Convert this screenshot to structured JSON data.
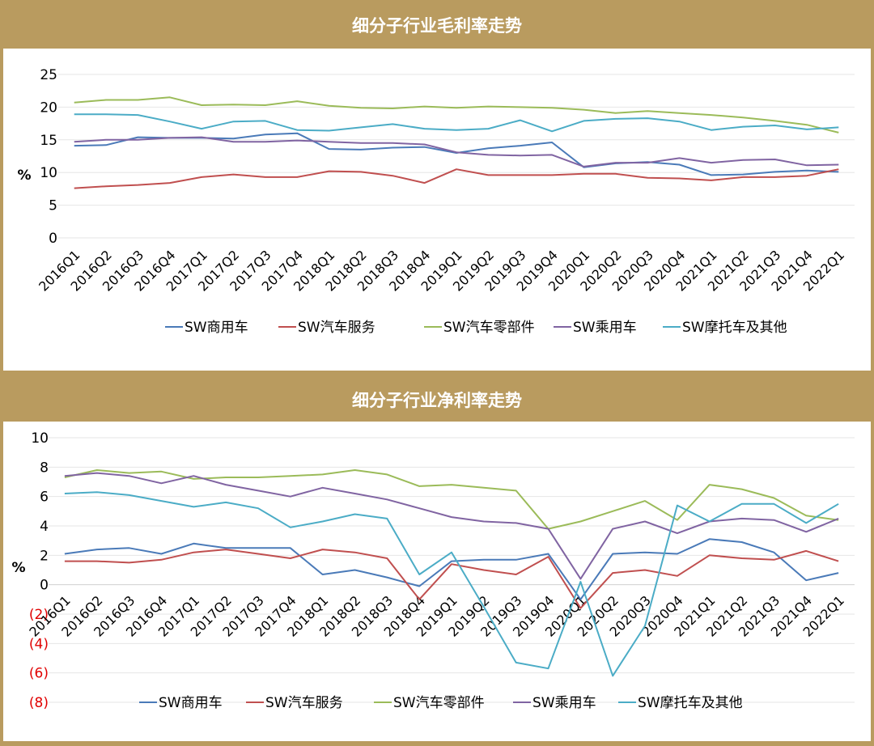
{
  "charts": {
    "gross": {
      "title": "细分子行业毛利率走势"
    },
    "net": {
      "title": "细分子行业净利率走势"
    }
  },
  "colors": {
    "frame": "#b99b5f",
    "negative_tick": "#e00000"
  },
  "chart_data": [
    {
      "type": "line",
      "title": "细分子行业毛利率走势",
      "ylabel": "%",
      "ylim": [
        0,
        25
      ],
      "yticks": [
        0,
        5,
        10,
        15,
        20,
        25
      ],
      "ytick_labels": [
        "0",
        "5",
        "10",
        "15",
        "20",
        "25"
      ],
      "grid": true,
      "legend": "bottom",
      "categories": [
        "2016Q1",
        "2016Q2",
        "2016Q3",
        "2016Q4",
        "2017Q1",
        "2017Q2",
        "2017Q3",
        "2017Q4",
        "2018Q1",
        "2018Q2",
        "2018Q3",
        "2018Q4",
        "2019Q1",
        "2019Q2",
        "2019Q3",
        "2019Q4",
        "2020Q1",
        "2020Q2",
        "2020Q3",
        "2020Q4",
        "2021Q1",
        "2021Q2",
        "2021Q3",
        "2021Q4",
        "2022Q1"
      ],
      "series": [
        {
          "name": "SW商用车",
          "color": "#4a7ab8",
          "values": [
            14.1,
            14.2,
            15.4,
            15.3,
            15.3,
            15.2,
            15.8,
            16.0,
            13.6,
            13.5,
            13.8,
            13.9,
            13.0,
            13.7,
            14.1,
            14.6,
            10.8,
            11.4,
            11.6,
            11.2,
            9.6,
            9.7,
            10.1,
            10.3,
            10.1
          ]
        },
        {
          "name": "SW汽车服务",
          "color": "#c04f4f",
          "values": [
            7.6,
            7.9,
            8.1,
            8.4,
            9.3,
            9.7,
            9.3,
            9.3,
            10.2,
            10.1,
            9.5,
            8.4,
            10.5,
            9.6,
            9.6,
            9.6,
            9.8,
            9.8,
            9.2,
            9.1,
            8.8,
            9.3,
            9.3,
            9.5,
            10.5
          ]
        },
        {
          "name": "SW汽车零部件",
          "color": "#9bbb59",
          "values": [
            20.7,
            21.1,
            21.1,
            21.5,
            20.3,
            20.4,
            20.3,
            20.9,
            20.2,
            19.9,
            19.8,
            20.1,
            19.9,
            20.1,
            20.0,
            19.9,
            19.6,
            19.1,
            19.4,
            19.1,
            18.8,
            18.4,
            17.9,
            17.3,
            16.1
          ]
        },
        {
          "name": "SW乘用车",
          "color": "#8064a2",
          "values": [
            14.7,
            15.0,
            15.0,
            15.3,
            15.4,
            14.7,
            14.7,
            14.9,
            14.7,
            14.5,
            14.5,
            14.3,
            13.1,
            12.7,
            12.6,
            12.7,
            10.9,
            11.5,
            11.5,
            12.2,
            11.5,
            11.9,
            12.0,
            11.1,
            11.2
          ]
        },
        {
          "name": "SW摩托车及其他",
          "color": "#4bacc6",
          "values": [
            18.9,
            18.9,
            18.8,
            17.8,
            16.7,
            17.8,
            17.9,
            16.5,
            16.4,
            16.9,
            17.4,
            16.7,
            16.5,
            16.7,
            18.0,
            16.3,
            17.9,
            18.2,
            18.3,
            17.8,
            16.5,
            17.0,
            17.2,
            16.6,
            16.9
          ]
        }
      ]
    },
    {
      "type": "line",
      "title": "细分子行业净利率走势",
      "ylabel": "%",
      "ylim": [
        -8,
        10
      ],
      "yticks": [
        -8,
        -6,
        -4,
        -2,
        0,
        2,
        4,
        6,
        8,
        10
      ],
      "ytick_labels": [
        "(8)",
        "(6)",
        "(4)",
        "(2)",
        "0",
        "2",
        "4",
        "6",
        "8",
        "10"
      ],
      "grid": true,
      "legend": "bottom",
      "categories": [
        "2016Q1",
        "2016Q2",
        "2016Q3",
        "2016Q4",
        "2017Q1",
        "2017Q2",
        "2017Q3",
        "2017Q4",
        "2018Q1",
        "2018Q2",
        "2018Q3",
        "2018Q4",
        "2019Q1",
        "2019Q2",
        "2019Q3",
        "2019Q4",
        "2020Q1",
        "2020Q2",
        "2020Q3",
        "2020Q4",
        "2021Q1",
        "2021Q2",
        "2021Q3",
        "2021Q4",
        "2022Q1"
      ],
      "series": [
        {
          "name": "SW商用车",
          "color": "#4a7ab8",
          "values": [
            2.1,
            2.4,
            2.5,
            2.1,
            2.8,
            2.5,
            2.5,
            2.5,
            0.7,
            1.0,
            0.5,
            -0.1,
            1.6,
            1.7,
            1.7,
            2.1,
            -1.0,
            2.1,
            2.2,
            2.1,
            3.1,
            2.9,
            2.2,
            0.3,
            0.8
          ]
        },
        {
          "name": "SW汽车服务",
          "color": "#c04f4f",
          "values": [
            1.6,
            1.6,
            1.5,
            1.7,
            2.2,
            2.4,
            2.1,
            1.8,
            2.4,
            2.2,
            1.8,
            -1.0,
            1.4,
            1.0,
            0.7,
            1.9,
            -1.6,
            0.8,
            1.0,
            0.6,
            2.0,
            1.8,
            1.7,
            2.3,
            1.6
          ]
        },
        {
          "name": "SW汽车零部件",
          "color": "#9bbb59",
          "values": [
            7.3,
            7.8,
            7.6,
            7.7,
            7.2,
            7.3,
            7.3,
            7.4,
            7.5,
            7.8,
            7.5,
            6.7,
            6.8,
            6.6,
            6.4,
            3.8,
            4.3,
            5.0,
            5.7,
            4.4,
            6.8,
            6.5,
            5.9,
            4.7,
            4.4
          ]
        },
        {
          "name": "SW乘用车",
          "color": "#8064a2",
          "values": [
            7.4,
            7.6,
            7.4,
            6.9,
            7.4,
            6.8,
            6.4,
            6.0,
            6.6,
            6.2,
            5.8,
            5.2,
            4.6,
            4.3,
            4.2,
            3.8,
            0.4,
            3.8,
            4.3,
            3.5,
            4.3,
            4.5,
            4.4,
            3.6,
            4.5
          ]
        },
        {
          "name": "SW摩托车及其他",
          "color": "#4bacc6",
          "values": [
            6.2,
            6.3,
            6.1,
            5.7,
            5.3,
            5.6,
            5.2,
            3.9,
            4.3,
            4.8,
            4.5,
            0.7,
            2.2,
            -1.5,
            -5.3,
            -5.7,
            0.2,
            -6.2,
            -2.8,
            5.4,
            4.3,
            5.5,
            5.5,
            4.2,
            5.5
          ]
        }
      ]
    }
  ]
}
